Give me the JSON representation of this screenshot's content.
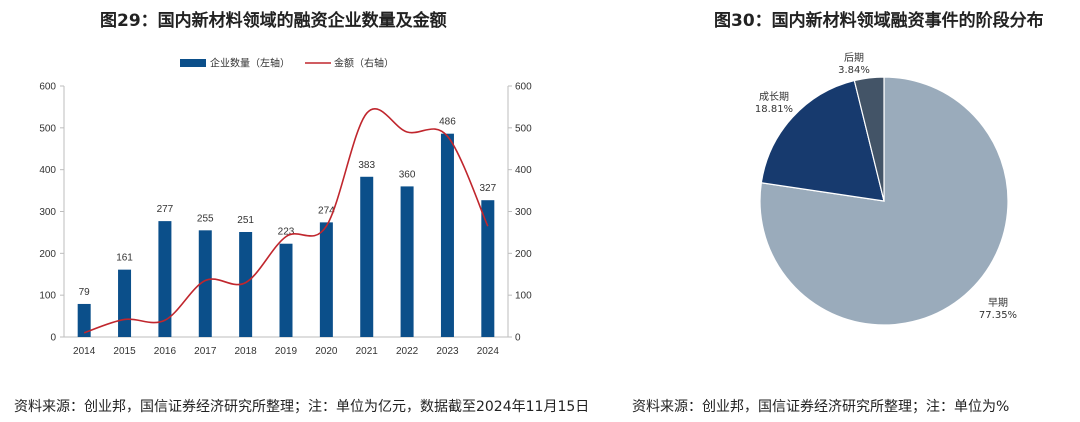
{
  "chart_data": [
    {
      "type": "bar+line",
      "title": "图29：国内新材料领域的融资企业数量及金额",
      "categories": [
        "2014",
        "2015",
        "2016",
        "2017",
        "2018",
        "2019",
        "2020",
        "2021",
        "2022",
        "2023",
        "2024"
      ],
      "series": [
        {
          "name": "企业数量（左轴）",
          "type": "bar",
          "axis": "left",
          "values": [
            79,
            161,
            277,
            255,
            251,
            223,
            274,
            383,
            360,
            486,
            327
          ],
          "color": "#0b4f8a"
        },
        {
          "name": "金额（右轴）",
          "type": "line",
          "axis": "right",
          "values": [
            10,
            42,
            40,
            135,
            130,
            240,
            265,
            535,
            490,
            480,
            265
          ],
          "color": "#c0262d"
        }
      ],
      "ylim_left": [
        0,
        600
      ],
      "ylim_right": [
        0,
        600
      ],
      "yticks": [
        0,
        100,
        200,
        300,
        400,
        500,
        600
      ],
      "legend": "top"
    },
    {
      "type": "pie",
      "title": "图30：国内新材料领域融资事件的阶段分布",
      "slices": [
        {
          "name": "早期",
          "value": 77.35,
          "label": "77.35%",
          "color": "#9aabbb"
        },
        {
          "name": "成长期",
          "value": 18.81,
          "label": "18.81%",
          "color": "#173a6e"
        },
        {
          "name": "后期",
          "value": 3.84,
          "label": "3.84%",
          "color": "#435467"
        }
      ]
    }
  ],
  "footer": {
    "left": "资料来源：创业邦，国信证券经济研究所整理；注：单位为亿元，数据截至2024年11月15日",
    "right": "资料来源：创业邦，国信证券经济研究所整理；注：单位为%"
  }
}
